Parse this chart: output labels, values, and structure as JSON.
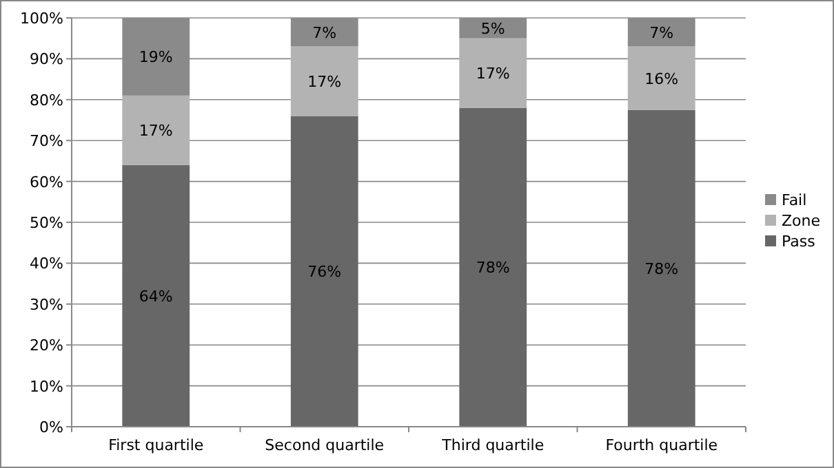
{
  "chart_data": {
    "type": "bar",
    "stacked": true,
    "categories": [
      "First quartile",
      "Second quartile",
      "Third quartile",
      "Fourth quartile"
    ],
    "series": [
      {
        "name": "Pass",
        "color": "#676767",
        "values": [
          64,
          76,
          78,
          77.5
        ],
        "value_labels": [
          "64%",
          "76%",
          "78%",
          "78%"
        ]
      },
      {
        "name": "Zone",
        "color": "#b3b3b3",
        "values": [
          17,
          17,
          17,
          15.5
        ],
        "value_labels": [
          "17%",
          "17%",
          "17%",
          "16%"
        ]
      },
      {
        "name": "Fail",
        "color": "#8a8a8a",
        "values": [
          19,
          7,
          5,
          7
        ],
        "value_labels": [
          "19%",
          "7%",
          "5%",
          "7%"
        ]
      }
    ],
    "ylim": [
      0,
      100
    ],
    "yticks": [
      {
        "value": 0,
        "label": "0%"
      },
      {
        "value": 10,
        "label": "10%"
      },
      {
        "value": 20,
        "label": "20%"
      },
      {
        "value": 30,
        "label": "30%"
      },
      {
        "value": 40,
        "label": "40%"
      },
      {
        "value": 50,
        "label": "50%"
      },
      {
        "value": 60,
        "label": "60%"
      },
      {
        "value": 70,
        "label": "70%"
      },
      {
        "value": 80,
        "label": "80%"
      },
      {
        "value": 90,
        "label": "90%"
      },
      {
        "value": 100,
        "label": "100%"
      }
    ],
    "grid": "y",
    "legend": "right"
  }
}
